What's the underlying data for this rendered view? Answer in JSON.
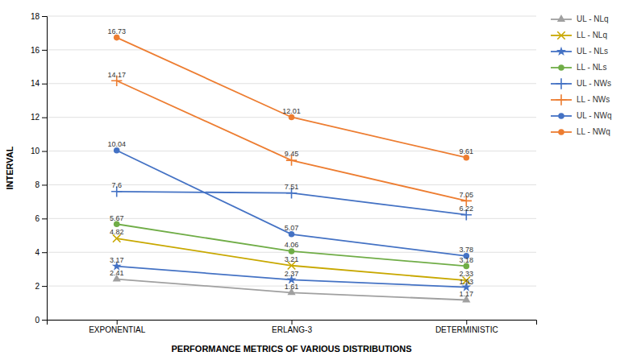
{
  "chart_data": {
    "type": "line",
    "xlabel": "PERFORMANCE METRICS OF VARIOUS DISTRIBUTIONS",
    "ylabel": "INTERVAL",
    "categories": [
      "EXPONENTIAL",
      "ERLANG-3",
      "DETERMINISTIC"
    ],
    "series": [
      {
        "name": "UL - NLq",
        "color": "#A0A0A0",
        "marker": "triangle",
        "values": [
          2.41,
          1.61,
          1.17
        ]
      },
      {
        "name": "LL - NLq",
        "color": "#C8A800",
        "marker": "x",
        "values": [
          4.82,
          3.21,
          2.33
        ]
      },
      {
        "name": "UL - NLs",
        "color": "#4472C4",
        "marker": "star",
        "values": [
          3.17,
          2.37,
          1.93
        ]
      },
      {
        "name": "LL - NLs",
        "color": "#70AD47",
        "marker": "circle",
        "values": [
          5.67,
          4.06,
          3.18
        ]
      },
      {
        "name": "UL - NWs",
        "color": "#4472C4",
        "marker": "plus",
        "values": [
          7.6,
          7.51,
          6.22
        ]
      },
      {
        "name": "LL - NWs",
        "color": "#ED7D31",
        "marker": "plus",
        "values": [
          14.17,
          9.45,
          7.05
        ]
      },
      {
        "name": "UL - NWq",
        "color": "#4472C4",
        "marker": "circle",
        "values": [
          10.04,
          5.07,
          3.78
        ]
      },
      {
        "name": "LL - NWq",
        "color": "#ED7D31",
        "marker": "circle",
        "values": [
          16.73,
          12.01,
          9.61
        ]
      }
    ],
    "ylim": [
      0,
      18
    ],
    "yticks": [
      0,
      2,
      4,
      6,
      8,
      10,
      12,
      14,
      16,
      18
    ],
    "grid": true,
    "legend": "right",
    "data_labels": true
  }
}
